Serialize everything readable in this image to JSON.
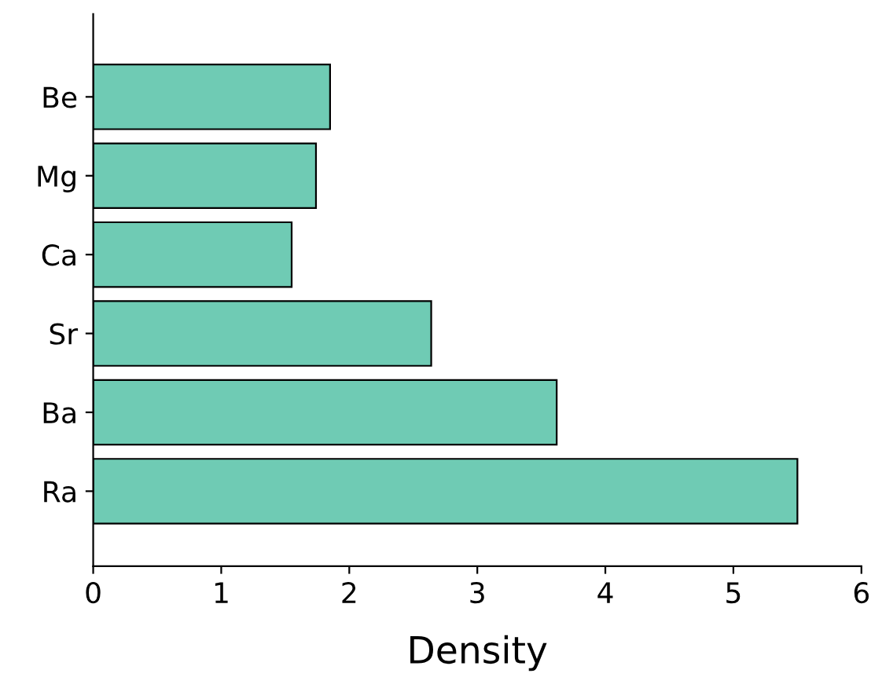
{
  "chart_data": {
    "type": "bar",
    "orientation": "horizontal",
    "categories": [
      "Be",
      "Mg",
      "Ca",
      "Sr",
      "Ba",
      "Ra"
    ],
    "values": [
      1.85,
      1.74,
      1.55,
      2.64,
      3.62,
      5.5
    ],
    "color": "#6fcbb4",
    "xlabel": "Density",
    "xlim": [
      0,
      6
    ],
    "xticks": [
      0,
      1,
      2,
      3,
      4,
      5,
      6
    ],
    "grid": false,
    "legend": false
  }
}
